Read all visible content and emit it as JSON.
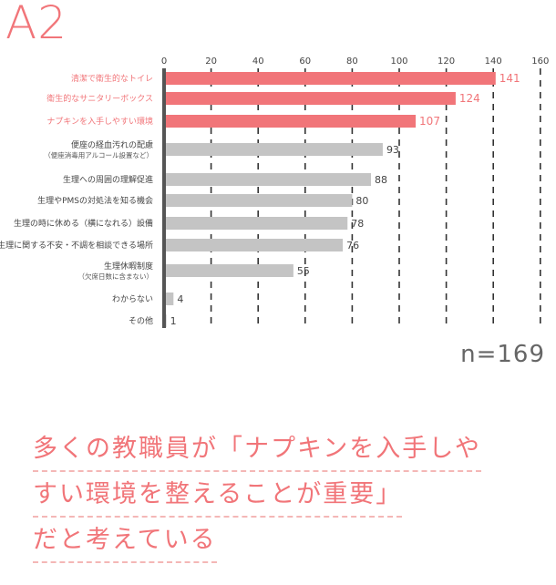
{
  "heading": "A2",
  "sample_size": "n=169",
  "conclusion": [
    "多くの教職員が「ナプキンを入手しや",
    "すい環境を整えることが重要」",
    "だと考えている"
  ],
  "colors": {
    "accent": "#f17579",
    "bar_highlight": "#f17579",
    "bar_default": "#c4c4c4",
    "axis": "#555555"
  },
  "chart_data": {
    "type": "bar",
    "orientation": "horizontal",
    "xlim": [
      0,
      160
    ],
    "ticks": [
      0,
      20,
      40,
      60,
      80,
      100,
      120,
      140,
      160
    ],
    "grid": true,
    "categories": [
      {
        "label": "清潔で衛生的なトイレ",
        "sub": "",
        "value": 141,
        "value_label": "141",
        "highlight": true
      },
      {
        "label": "衛生的なサニタリーボックス",
        "sub": "",
        "value": 124,
        "value_label": "124",
        "highlight": true
      },
      {
        "label": "ナプキンを入手しやすい環境",
        "sub": "",
        "value": 107,
        "value_label": "107",
        "highlight": true
      },
      {
        "label": "便座の経血汚れの配慮",
        "sub": "（便座消毒用アルコール設置など）",
        "value": 93,
        "value_label": "93",
        "highlight": false
      },
      {
        "label": "生理への周囲の理解促進",
        "sub": "",
        "value": 88,
        "value_label": "88",
        "highlight": false
      },
      {
        "label": "生理やPMSの対処法を知る機会",
        "sub": "",
        "value": 80,
        "value_label": "80",
        "highlight": false
      },
      {
        "label": "生理の時に休める（横になれる）設備",
        "sub": "",
        "value": 78,
        "value_label": "78",
        "highlight": false
      },
      {
        "label": "生理に関する不安・不調を相談できる場所",
        "sub": "",
        "value": 76,
        "value_label": "76",
        "highlight": false
      },
      {
        "label": "生理休暇制度",
        "sub": "（欠席日数に含まない）",
        "value": 55,
        "value_label": "55",
        "highlight": false
      },
      {
        "label": "わからない",
        "sub": "",
        "value": 4,
        "value_label": "4",
        "highlight": false
      },
      {
        "label": "その他",
        "sub": "",
        "value": 1,
        "value_label": "1",
        "highlight": false
      }
    ]
  }
}
